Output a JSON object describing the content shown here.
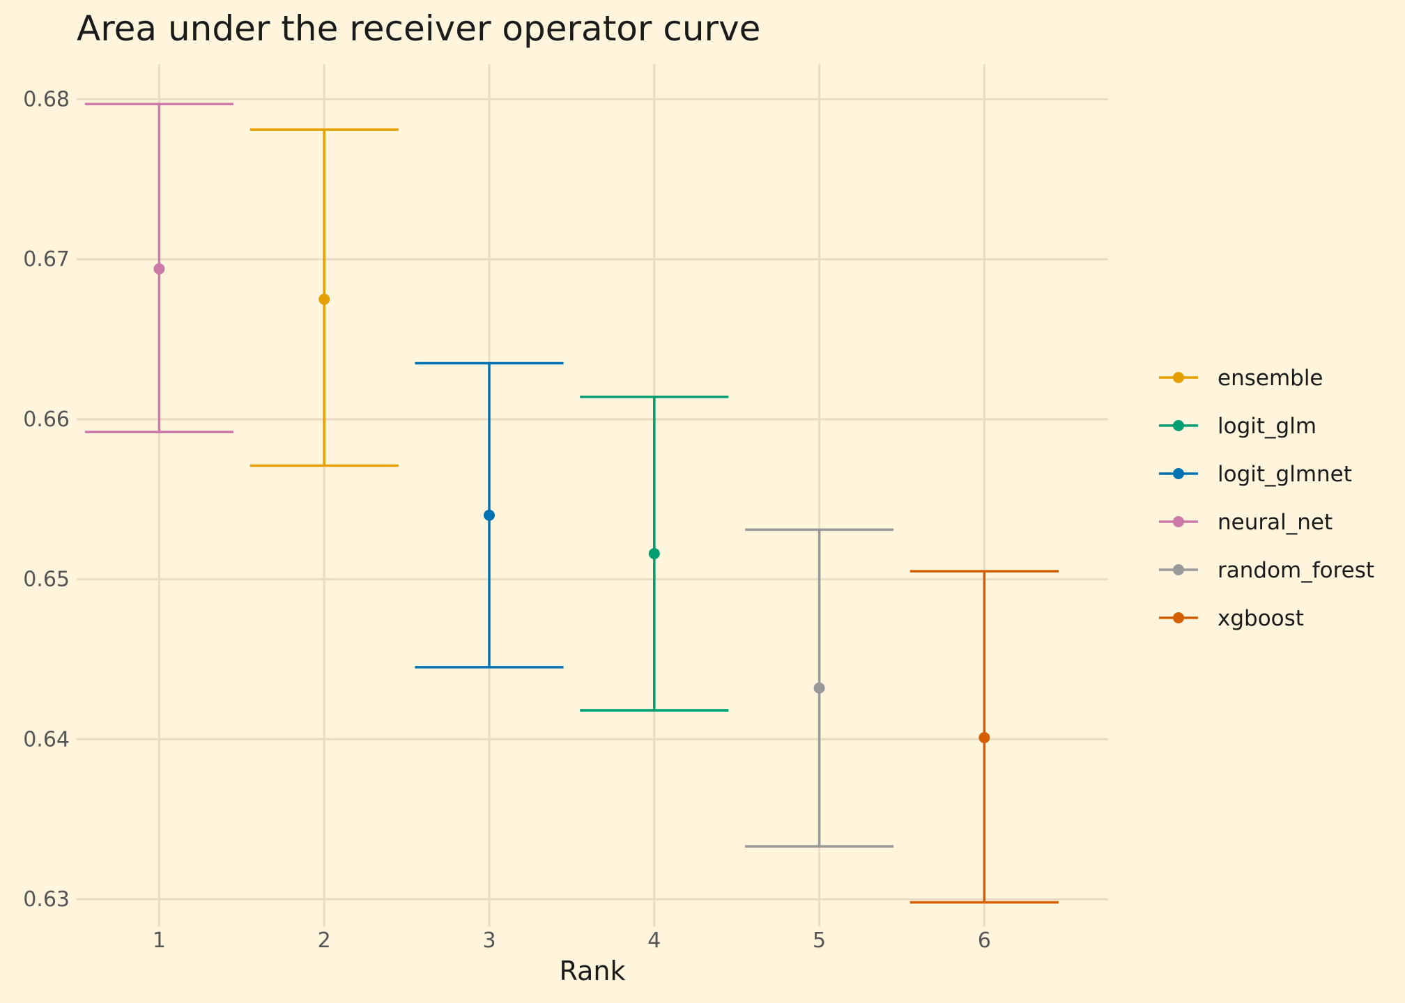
{
  "chart_data": {
    "type": "errorbar",
    "title": "Area under the receiver operator curve",
    "xlabel": "Rank",
    "ylabel": "",
    "xlim": [
      0.5,
      6.75
    ],
    "ylim": [
      0.6283,
      0.6822
    ],
    "x_ticks": [
      1,
      2,
      3,
      4,
      5,
      6
    ],
    "y_ticks": [
      0.63,
      0.64,
      0.65,
      0.66,
      0.67,
      0.68
    ],
    "y_tick_labels": [
      "0.63",
      "0.64",
      "0.65",
      "0.66",
      "0.67",
      "0.68"
    ],
    "grid": true,
    "legend_position": "right",
    "series": [
      {
        "name": "neural_net",
        "x": 1,
        "y": 0.6694,
        "lower": 0.6592,
        "upper": 0.6797,
        "color": "#cc79a7"
      },
      {
        "name": "ensemble",
        "x": 2,
        "y": 0.6675,
        "lower": 0.6571,
        "upper": 0.6781,
        "color": "#e69f00"
      },
      {
        "name": "logit_glmnet",
        "x": 3,
        "y": 0.654,
        "lower": 0.6445,
        "upper": 0.6635,
        "color": "#0072b2"
      },
      {
        "name": "logit_glm",
        "x": 4,
        "y": 0.6516,
        "lower": 0.6418,
        "upper": 0.6614,
        "color": "#009e73"
      },
      {
        "name": "random_forest",
        "x": 5,
        "y": 0.6432,
        "lower": 0.6333,
        "upper": 0.6531,
        "color": "#999999"
      },
      {
        "name": "xgboost",
        "x": 6,
        "y": 0.6401,
        "lower": 0.6298,
        "upper": 0.6505,
        "color": "#d55e00"
      }
    ],
    "legend_order": [
      "ensemble",
      "logit_glm",
      "logit_glmnet",
      "neural_net",
      "random_forest",
      "xgboost"
    ]
  }
}
